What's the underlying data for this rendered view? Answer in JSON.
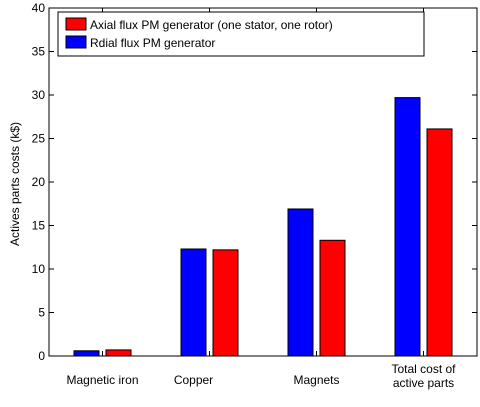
{
  "chart_data": {
    "type": "bar",
    "categories": [
      [
        "Magnetic iron"
      ],
      [
        "Copper"
      ],
      [
        "Magnets"
      ],
      [
        "Total cost of",
        "active parts"
      ]
    ],
    "series": [
      {
        "name": "Rdial flux PM generator",
        "color": "#0000ff",
        "values": [
          0.6,
          12.3,
          16.9,
          29.7
        ]
      },
      {
        "name": "Axial flux PM generator (one stator, one rotor)",
        "color": "#ff0000",
        "values": [
          0.7,
          12.2,
          13.3,
          26.1
        ]
      }
    ],
    "legend_order": [
      1,
      0
    ],
    "title": "",
    "xlabel": "",
    "ylabel": "Actives parts costs (k$)",
    "ylim": [
      0,
      40
    ],
    "yticks": [
      0,
      5,
      10,
      15,
      20,
      25,
      30,
      35,
      40
    ],
    "grid": false,
    "legend_position": "top-left"
  }
}
